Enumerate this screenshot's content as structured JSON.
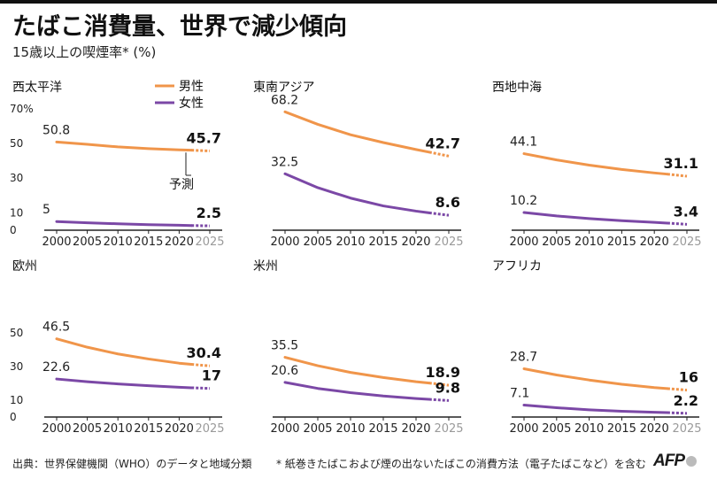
{
  "title": "たばこ消費量、世界で減少傾向",
  "subtitle": "15歳以上の喫煙率* (%)",
  "legend": {
    "male": "男性",
    "female": "女性"
  },
  "forecast_label": "予測",
  "colors": {
    "male": "#f0954a",
    "female": "#7b48a6",
    "axis": "#222222",
    "faded": "#9a9a9a"
  },
  "footer": {
    "source": "出典：世界保健機関（WHO）のデータと地域分類",
    "note": "* 紙巻きたばこおよび煙の出ないたばこの消費方法（電子たばこなど）を含む",
    "logo": "AFP"
  },
  "chart_data": [
    {
      "type": "line",
      "title": "西太平洋",
      "xlabel": "",
      "ylabel": "",
      "x_ticks": [
        "2000",
        "2005",
        "2010",
        "2015",
        "2020",
        "2025"
      ],
      "y_ticks": [
        "0",
        "10",
        "30",
        "50",
        "70%"
      ],
      "ylim": [
        0,
        70
      ],
      "series": [
        {
          "name": "男性",
          "start": 50.8,
          "start_label": "50.8",
          "end": 45.7,
          "end_label": "45.7",
          "x": [
            2000,
            2005,
            2010,
            2015,
            2020,
            2022,
            2025
          ],
          "values": [
            50.8,
            49.5,
            48.0,
            47.0,
            46.3,
            46.1,
            45.7
          ]
        },
        {
          "name": "女性",
          "start": 5,
          "start_label": "5",
          "end": 2.5,
          "end_label": "2.5",
          "x": [
            2000,
            2005,
            2010,
            2015,
            2020,
            2022,
            2025
          ],
          "values": [
            5,
            4.3,
            3.7,
            3.2,
            2.9,
            2.7,
            2.5
          ]
        }
      ]
    },
    {
      "type": "line",
      "title": "東南アジア",
      "xlabel": "",
      "ylabel": "",
      "x_ticks": [
        "2000",
        "2005",
        "2010",
        "2015",
        "2020",
        "2025"
      ],
      "y_ticks": [],
      "ylim": [
        0,
        70
      ],
      "series": [
        {
          "name": "男性",
          "start": 68.2,
          "start_label": "68.2",
          "end": 42.7,
          "end_label": "42.7",
          "x": [
            2000,
            2005,
            2010,
            2015,
            2020,
            2022,
            2025
          ],
          "values": [
            68.2,
            61.0,
            55.0,
            50.5,
            46.5,
            45.0,
            42.7
          ]
        },
        {
          "name": "女性",
          "start": 32.5,
          "start_label": "32.5",
          "end": 8.6,
          "end_label": "8.6",
          "x": [
            2000,
            2005,
            2010,
            2015,
            2020,
            2022,
            2025
          ],
          "values": [
            32.5,
            24.5,
            18.5,
            14.0,
            11.0,
            10.0,
            8.6
          ]
        }
      ]
    },
    {
      "type": "line",
      "title": "西地中海",
      "xlabel": "",
      "ylabel": "",
      "x_ticks": [
        "2000",
        "2005",
        "2010",
        "2015",
        "2020",
        "2025"
      ],
      "y_ticks": [],
      "ylim": [
        0,
        70
      ],
      "series": [
        {
          "name": "男性",
          "start": 44.1,
          "start_label": "44.1",
          "end": 31.1,
          "end_label": "31.1",
          "x": [
            2000,
            2005,
            2010,
            2015,
            2020,
            2022,
            2025
          ],
          "values": [
            44.1,
            40.5,
            37.5,
            35.0,
            33.0,
            32.3,
            31.1
          ]
        },
        {
          "name": "女性",
          "start": 10.2,
          "start_label": "10.2",
          "end": 3.4,
          "end_label": "3.4",
          "x": [
            2000,
            2005,
            2010,
            2015,
            2020,
            2022,
            2025
          ],
          "values": [
            10.2,
            8.2,
            6.7,
            5.5,
            4.5,
            4.1,
            3.4
          ]
        }
      ]
    },
    {
      "type": "line",
      "title": "欧州",
      "xlabel": "",
      "ylabel": "",
      "x_ticks": [
        "2000",
        "2005",
        "2010",
        "2015",
        "2020",
        "2025"
      ],
      "y_ticks": [
        "0",
        "10",
        "30",
        "50"
      ],
      "ylim": [
        0,
        70
      ],
      "series": [
        {
          "name": "男性",
          "start": 46.5,
          "start_label": "46.5",
          "end": 30.4,
          "end_label": "30.4",
          "x": [
            2000,
            2005,
            2010,
            2015,
            2020,
            2022,
            2025
          ],
          "values": [
            46.5,
            41.5,
            37.5,
            34.5,
            32.0,
            31.3,
            30.4
          ]
        },
        {
          "name": "女性",
          "start": 22.6,
          "start_label": "22.6",
          "end": 17,
          "end_label": "17",
          "x": [
            2000,
            2005,
            2010,
            2015,
            2020,
            2022,
            2025
          ],
          "values": [
            22.6,
            21.0,
            19.7,
            18.6,
            17.7,
            17.4,
            17.0
          ]
        }
      ]
    },
    {
      "type": "line",
      "title": "米州",
      "xlabel": "",
      "ylabel": "",
      "x_ticks": [
        "2000",
        "2005",
        "2010",
        "2015",
        "2020",
        "2025"
      ],
      "y_ticks": [],
      "ylim": [
        0,
        70
      ],
      "series": [
        {
          "name": "男性",
          "start": 35.5,
          "start_label": "35.5",
          "end": 18.9,
          "end_label": "18.9",
          "x": [
            2000,
            2005,
            2010,
            2015,
            2020,
            2022,
            2025
          ],
          "values": [
            35.5,
            30.5,
            26.5,
            23.5,
            21.0,
            20.2,
            18.9
          ]
        },
        {
          "name": "女性",
          "start": 20.6,
          "start_label": "20.6",
          "end": 9.8,
          "end_label": "9.8",
          "x": [
            2000,
            2005,
            2010,
            2015,
            2020,
            2022,
            2025
          ],
          "values": [
            20.6,
            17.0,
            14.5,
            12.5,
            11.0,
            10.5,
            9.8
          ]
        }
      ]
    },
    {
      "type": "line",
      "title": "アフリカ",
      "xlabel": "",
      "ylabel": "",
      "x_ticks": [
        "2000",
        "2005",
        "2010",
        "2015",
        "2020",
        "2025"
      ],
      "y_ticks": [],
      "ylim": [
        0,
        70
      ],
      "series": [
        {
          "name": "男性",
          "start": 28.7,
          "start_label": "28.7",
          "end": 16,
          "end_label": "16",
          "x": [
            2000,
            2005,
            2010,
            2015,
            2020,
            2022,
            2025
          ],
          "values": [
            28.7,
            25.0,
            22.0,
            19.5,
            17.5,
            16.9,
            16.0
          ]
        },
        {
          "name": "女性",
          "start": 7.1,
          "start_label": "7.1",
          "end": 2.2,
          "end_label": "2.2",
          "x": [
            2000,
            2005,
            2010,
            2015,
            2020,
            2022,
            2025
          ],
          "values": [
            7.1,
            5.5,
            4.3,
            3.4,
            2.8,
            2.6,
            2.2
          ]
        }
      ]
    }
  ]
}
